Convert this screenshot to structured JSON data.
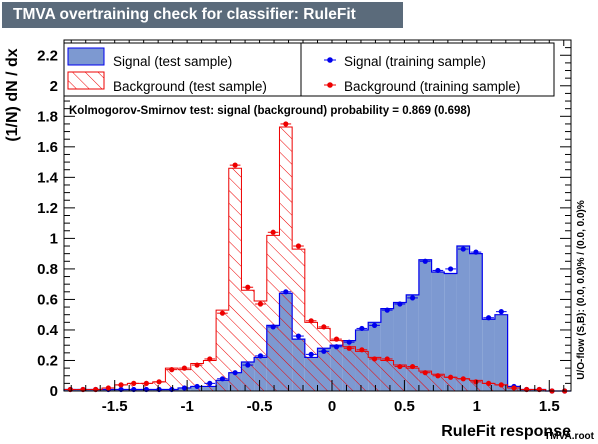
{
  "window": {
    "title": "TMVA overtraining check for classifier: RuleFit"
  },
  "footer": {
    "file": "TMVA.root"
  },
  "chart_data": {
    "type": "histogram",
    "title": "TMVA overtraining check for classifier: RuleFit",
    "xlabel": "RuleFit response",
    "ylabel": "(1/N) dN / dx",
    "right_label": "U/O-flow (S,B): (0.0, 0.0)% / (0.0, 0.0)%",
    "annotation": "Kolmogorov-Smirnov test: signal (background) probability = 0.869 (0.698)",
    "xlim": [
      -1.85,
      1.65
    ],
    "ylim": [
      0,
      2.3
    ],
    "x_ticks": [
      "-1.5",
      "-1",
      "-0.5",
      "0",
      "0.5",
      "1",
      "1.5"
    ],
    "x_tick_values": [
      -1.5,
      -1,
      -0.5,
      0,
      0.5,
      1,
      1.5
    ],
    "y_ticks": [
      "0",
      "0.2",
      "0.4",
      "0.6",
      "0.8",
      "1",
      "1.2",
      "1.4",
      "1.6",
      "1.8",
      "2",
      "2.2"
    ],
    "y_tick_values": [
      0,
      0.2,
      0.4,
      0.6,
      0.8,
      1,
      1.2,
      1.4,
      1.6,
      1.8,
      2,
      2.2
    ],
    "bin_edges_start": -1.85,
    "bin_width": 0.0875,
    "legend": {
      "placement": "top",
      "items": [
        {
          "label": "Signal (test sample)",
          "kind": "signal-fill"
        },
        {
          "label": "Signal (training sample)",
          "kind": "signal-marker"
        },
        {
          "label": "Background (test sample)",
          "kind": "background-hatch"
        },
        {
          "label": "Background (training sample)",
          "kind": "background-marker"
        }
      ]
    },
    "series": [
      {
        "name": "Signal (test sample)",
        "color": "#7d99d1",
        "line": "#0000ee",
        "values": [
          0.01,
          0.01,
          0.01,
          0.01,
          0.01,
          0.01,
          0.01,
          0.01,
          0.01,
          0.02,
          0.03,
          0.03,
          0.07,
          0.12,
          0.19,
          0.22,
          0.43,
          0.64,
          0.34,
          0.22,
          0.28,
          0.3,
          0.33,
          0.4,
          0.45,
          0.54,
          0.58,
          0.63,
          0.86,
          0.78,
          0.77,
          0.95,
          0.9,
          0.47,
          0.5,
          0.03,
          0.01,
          0.01,
          0.0,
          0.0
        ]
      },
      {
        "name": "Signal (training sample)",
        "color": "#0000ee",
        "values": [
          0.01,
          0.01,
          0.01,
          0.01,
          0.01,
          0.01,
          0.01,
          0.01,
          0.01,
          0.02,
          0.03,
          0.05,
          0.08,
          0.12,
          0.17,
          0.23,
          0.42,
          0.65,
          0.36,
          0.24,
          0.26,
          0.29,
          0.32,
          0.41,
          0.43,
          0.53,
          0.57,
          0.61,
          0.85,
          0.79,
          0.8,
          0.93,
          0.91,
          0.48,
          0.52,
          0.03,
          0.01,
          0.01,
          0.0,
          0.0
        ]
      },
      {
        "name": "Background (test sample)",
        "color": "#ee0000",
        "values": [
          0.01,
          0.01,
          0.01,
          0.02,
          0.04,
          0.05,
          0.05,
          0.06,
          0.15,
          0.14,
          0.18,
          0.2,
          0.53,
          1.46,
          0.66,
          0.59,
          1.02,
          1.73,
          0.93,
          0.45,
          0.41,
          0.33,
          0.29,
          0.26,
          0.22,
          0.2,
          0.17,
          0.15,
          0.13,
          0.11,
          0.09,
          0.08,
          0.07,
          0.05,
          0.04,
          0.02,
          0.01,
          0.01,
          0.0,
          0.0
        ]
      },
      {
        "name": "Background (training sample)",
        "color": "#ee0000",
        "values": [
          0.01,
          0.01,
          0.01,
          0.02,
          0.04,
          0.05,
          0.05,
          0.06,
          0.14,
          0.15,
          0.17,
          0.21,
          0.51,
          1.48,
          0.68,
          0.57,
          1.04,
          1.75,
          0.95,
          0.46,
          0.42,
          0.34,
          0.28,
          0.27,
          0.21,
          0.21,
          0.16,
          0.16,
          0.12,
          0.1,
          0.09,
          0.08,
          0.06,
          0.05,
          0.04,
          0.02,
          0.01,
          0.01,
          0.0,
          0.0
        ]
      }
    ]
  }
}
